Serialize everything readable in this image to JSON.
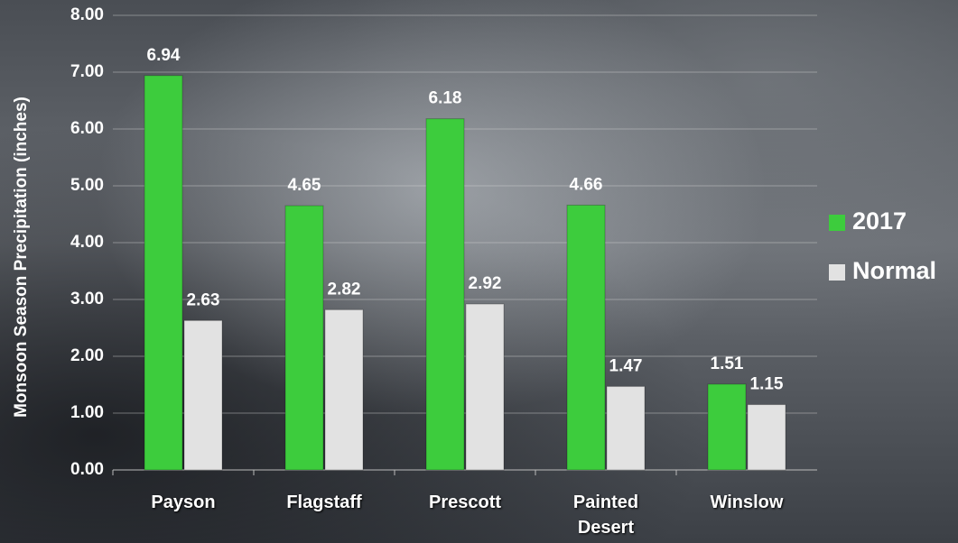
{
  "chart_data": {
    "type": "bar",
    "y_label": "Monsoon Season Precipitation (inches)",
    "categories": [
      "Payson",
      "Flagstaff",
      "Prescott",
      "Painted Desert",
      "Winslow"
    ],
    "series": [
      {
        "name": "2017",
        "color": "#3dcc3d",
        "values": [
          6.94,
          4.65,
          6.18,
          4.66,
          1.51
        ]
      },
      {
        "name": "Normal",
        "color": "#e2e2e2",
        "values": [
          2.63,
          2.82,
          2.92,
          1.47,
          1.15
        ]
      }
    ],
    "ylim": [
      0,
      8
    ],
    "yticks": [
      {
        "value": 0,
        "label": "0.00"
      },
      {
        "value": 1,
        "label": "1.00"
      },
      {
        "value": 2,
        "label": "2.00"
      },
      {
        "value": 3,
        "label": "3.00"
      },
      {
        "value": 4,
        "label": "4.00"
      },
      {
        "value": 5,
        "label": "5.00"
      },
      {
        "value": 6,
        "label": "6.00"
      },
      {
        "value": 7,
        "label": "7.00"
      },
      {
        "value": 8,
        "label": "8.00"
      }
    ],
    "grid": true,
    "legend": "right"
  }
}
